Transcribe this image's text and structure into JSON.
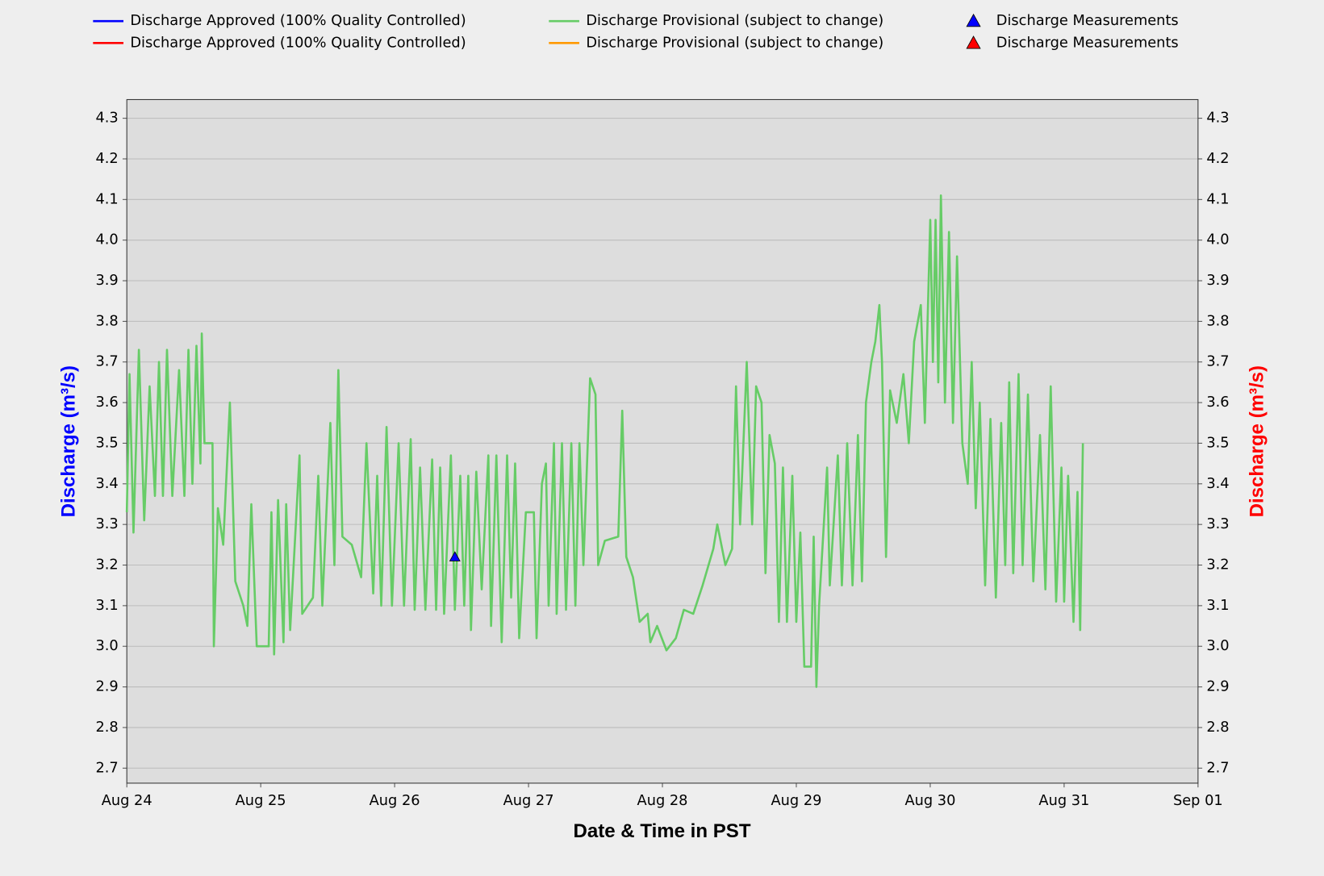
{
  "chart_data": {
    "type": "line",
    "legend": [
      {
        "name": "Discharge Approved (100% Quality Controlled)",
        "color": "#0000ff",
        "marker": "line"
      },
      {
        "name": "Discharge Approved (100% Quality Controlled)",
        "color": "#ff0000",
        "marker": "line"
      },
      {
        "name": "Discharge Provisional (subject to change)",
        "color": "#66cc66",
        "marker": "line"
      },
      {
        "name": "Discharge Provisional (subject to change)",
        "color": "#ff9900",
        "marker": "line"
      },
      {
        "name": "Discharge Measurements",
        "color": "#0000ff",
        "marker": "triangle"
      },
      {
        "name": "Discharge Measurements",
        "color": "#ff0000",
        "marker": "triangle"
      }
    ],
    "x_label": "Date & Time in PST",
    "y_label": "Discharge (m³/s)",
    "y2_label": "Discharge (m³/s)",
    "y_label_color": "#0000ff",
    "y2_label_color": "#ff0000",
    "xlim": [
      0,
      8
    ],
    "xticks": [
      {
        "value": 0,
        "label": "Aug 24"
      },
      {
        "value": 1,
        "label": "Aug 25"
      },
      {
        "value": 2,
        "label": "Aug 26"
      },
      {
        "value": 3,
        "label": "Aug 27"
      },
      {
        "value": 4,
        "label": "Aug 28"
      },
      {
        "value": 5,
        "label": "Aug 29"
      },
      {
        "value": 6,
        "label": "Aug 30"
      },
      {
        "value": 7,
        "label": "Aug 31"
      },
      {
        "value": 8,
        "label": "Sep 01"
      }
    ],
    "ylim": [
      2.663,
      4.346
    ],
    "yticks": [
      2.7,
      2.8,
      2.9,
      {
        "value": 3,
        "label": "3.0"
      },
      3.1,
      3.2,
      3.3,
      3.4,
      3.5,
      3.6,
      3.7,
      3.8,
      3.9,
      {
        "value": 4,
        "label": "4.0"
      },
      4.1,
      4.2,
      4.3
    ],
    "y2lim": [
      2.663,
      4.346
    ],
    "y2ticks": [
      2.7,
      2.8,
      2.9,
      {
        "value": 3,
        "label": "3.0"
      },
      3.1,
      3.2,
      3.3,
      3.4,
      3.5,
      3.6,
      3.7,
      3.8,
      3.9,
      {
        "value": 4,
        "label": "4.0"
      },
      4.1,
      4.2,
      4.3
    ],
    "grid": true,
    "series": [
      {
        "name": "Discharge Provisional (subject to change)",
        "color": "#66cc66",
        "x": [
          0,
          0.02,
          0.05,
          0.09,
          0.13,
          0.17,
          0.21,
          0.24,
          0.27,
          0.3,
          0.34,
          0.39,
          0.43,
          0.46,
          0.49,
          0.52,
          0.55,
          0.56,
          0.58,
          0.64,
          0.65,
          0.68,
          0.72,
          0.77,
          0.81,
          0.87,
          0.9,
          0.93,
          0.97,
          1.06,
          1.08,
          1.1,
          1.13,
          1.17,
          1.19,
          1.22,
          1.29,
          1.31,
          1.39,
          1.43,
          1.46,
          1.52,
          1.55,
          1.58,
          1.61,
          1.68,
          1.75,
          1.79,
          1.84,
          1.87,
          1.9,
          1.94,
          1.98,
          2.03,
          2.07,
          2.12,
          2.15,
          2.19,
          2.23,
          2.28,
          2.31,
          2.34,
          2.37,
          2.42,
          2.45,
          2.49,
          2.52,
          2.55,
          2.57,
          2.61,
          2.65,
          2.7,
          2.72,
          2.76,
          2.8,
          2.84,
          2.87,
          2.9,
          2.93,
          2.98,
          3.04,
          3.06,
          3.1,
          3.13,
          3.15,
          3.19,
          3.21,
          3.25,
          3.28,
          3.32,
          3.35,
          3.38,
          3.41,
          3.46,
          3.5,
          3.52,
          3.57,
          3.67,
          3.7,
          3.73,
          3.78,
          3.83,
          3.89,
          3.91,
          3.96,
          4.03,
          4.1,
          4.16,
          4.23,
          4.3,
          4.38,
          4.41,
          4.47,
          4.52,
          4.55,
          4.58,
          4.63,
          4.67,
          4.7,
          4.74,
          4.77,
          4.8,
          4.84,
          4.87,
          4.9,
          4.93,
          4.97,
          5,
          5.03,
          5.06,
          5.11,
          5.13,
          5.15,
          5.17,
          5.23,
          5.25,
          5.31,
          5.34,
          5.38,
          5.42,
          5.46,
          5.49,
          5.52,
          5.56,
          5.59,
          5.62,
          5.64,
          5.67,
          5.7,
          5.75,
          5.8,
          5.84,
          5.88,
          5.93,
          5.96,
          6,
          6.02,
          6.04,
          6.06,
          6.08,
          6.11,
          6.14,
          6.17,
          6.2,
          6.24,
          6.28,
          6.31,
          6.34,
          6.37,
          6.41,
          6.45,
          6.49,
          6.53,
          6.56,
          6.59,
          6.62,
          6.66,
          6.69,
          6.73,
          6.77,
          6.82,
          6.86,
          6.9,
          6.94,
          6.98,
          7,
          7.03,
          7.07,
          7.1,
          7.12,
          7.14
        ],
        "values": [
          3.33,
          3.67,
          3.28,
          3.73,
          3.31,
          3.64,
          3.37,
          3.7,
          3.37,
          3.73,
          3.37,
          3.68,
          3.37,
          3.73,
          3.4,
          3.74,
          3.45,
          3.77,
          3.5,
          3.5,
          3,
          3.34,
          3.25,
          3.6,
          3.16,
          3.1,
          3.05,
          3.35,
          3,
          3,
          3.33,
          2.98,
          3.36,
          3.01,
          3.35,
          3.04,
          3.47,
          3.08,
          3.12,
          3.42,
          3.1,
          3.55,
          3.2,
          3.68,
          3.27,
          3.25,
          3.17,
          3.5,
          3.13,
          3.42,
          3.1,
          3.54,
          3.1,
          3.5,
          3.1,
          3.51,
          3.09,
          3.44,
          3.09,
          3.46,
          3.09,
          3.44,
          3.08,
          3.47,
          3.09,
          3.42,
          3.1,
          3.42,
          3.04,
          3.43,
          3.14,
          3.47,
          3.05,
          3.47,
          3.01,
          3.47,
          3.12,
          3.45,
          3.02,
          3.33,
          3.33,
          3.02,
          3.4,
          3.45,
          3.1,
          3.5,
          3.08,
          3.5,
          3.09,
          3.5,
          3.1,
          3.5,
          3.2,
          3.66,
          3.62,
          3.2,
          3.26,
          3.27,
          3.58,
          3.22,
          3.17,
          3.06,
          3.08,
          3.01,
          3.05,
          2.99,
          3.02,
          3.09,
          3.08,
          3.15,
          3.24,
          3.3,
          3.2,
          3.24,
          3.64,
          3.3,
          3.7,
          3.3,
          3.64,
          3.6,
          3.18,
          3.52,
          3.45,
          3.06,
          3.44,
          3.06,
          3.42,
          3.06,
          3.28,
          2.95,
          2.95,
          3.27,
          2.9,
          3.1,
          3.44,
          3.15,
          3.47,
          3.15,
          3.5,
          3.15,
          3.52,
          3.16,
          3.6,
          3.7,
          3.75,
          3.84,
          3.7,
          3.22,
          3.63,
          3.55,
          3.67,
          3.5,
          3.75,
          3.84,
          3.55,
          4.05,
          3.7,
          4.05,
          3.65,
          4.11,
          3.6,
          4.02,
          3.55,
          3.96,
          3.5,
          3.4,
          3.7,
          3.34,
          3.6,
          3.15,
          3.56,
          3.12,
          3.55,
          3.2,
          3.65,
          3.18,
          3.67,
          3.2,
          3.62,
          3.16,
          3.52,
          3.14,
          3.64,
          3.11,
          3.44,
          3.11,
          3.42,
          3.06,
          3.38,
          3.04,
          3.5
        ]
      },
      {
        "name": "Discharge Measurements",
        "color": "#0000ff",
        "marker": "triangle",
        "x": [
          2.45
        ],
        "values": [
          3.22
        ]
      }
    ]
  }
}
